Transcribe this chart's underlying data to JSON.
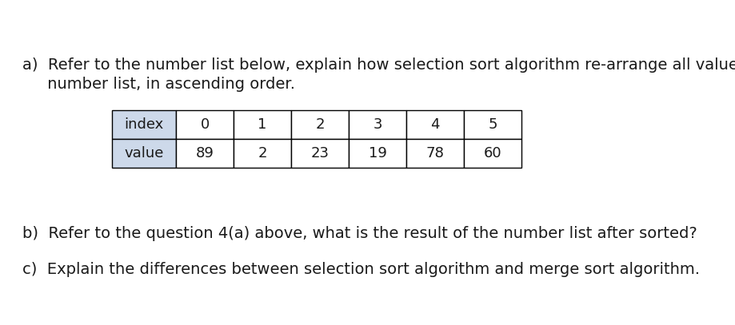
{
  "background_color": "#ffffff",
  "text_a_line1": "a)  Refer to the number list below, explain how selection sort algorithm re-arrange all values in the",
  "text_a_line2": "     number list, in ascending order.",
  "text_b": "b)  Refer to the question 4(a) above, what is the result of the number list after sorted?",
  "text_c": "c)  Explain the differences between selection sort algorithm and merge sort algorithm.",
  "table_headers": [
    "index",
    "0",
    "1",
    "2",
    "3",
    "4",
    "5"
  ],
  "table_values": [
    "value",
    "89",
    "2",
    "23",
    "19",
    "78",
    "60"
  ],
  "header_bg_color": "#cdd9ea",
  "table_border_color": "#000000",
  "font_size_text": 14,
  "font_size_table": 13,
  "font_family": "DejaVu Sans",
  "text_color": "#1a1a1a",
  "fig_width": 9.19,
  "fig_height": 4.07,
  "dpi": 100
}
